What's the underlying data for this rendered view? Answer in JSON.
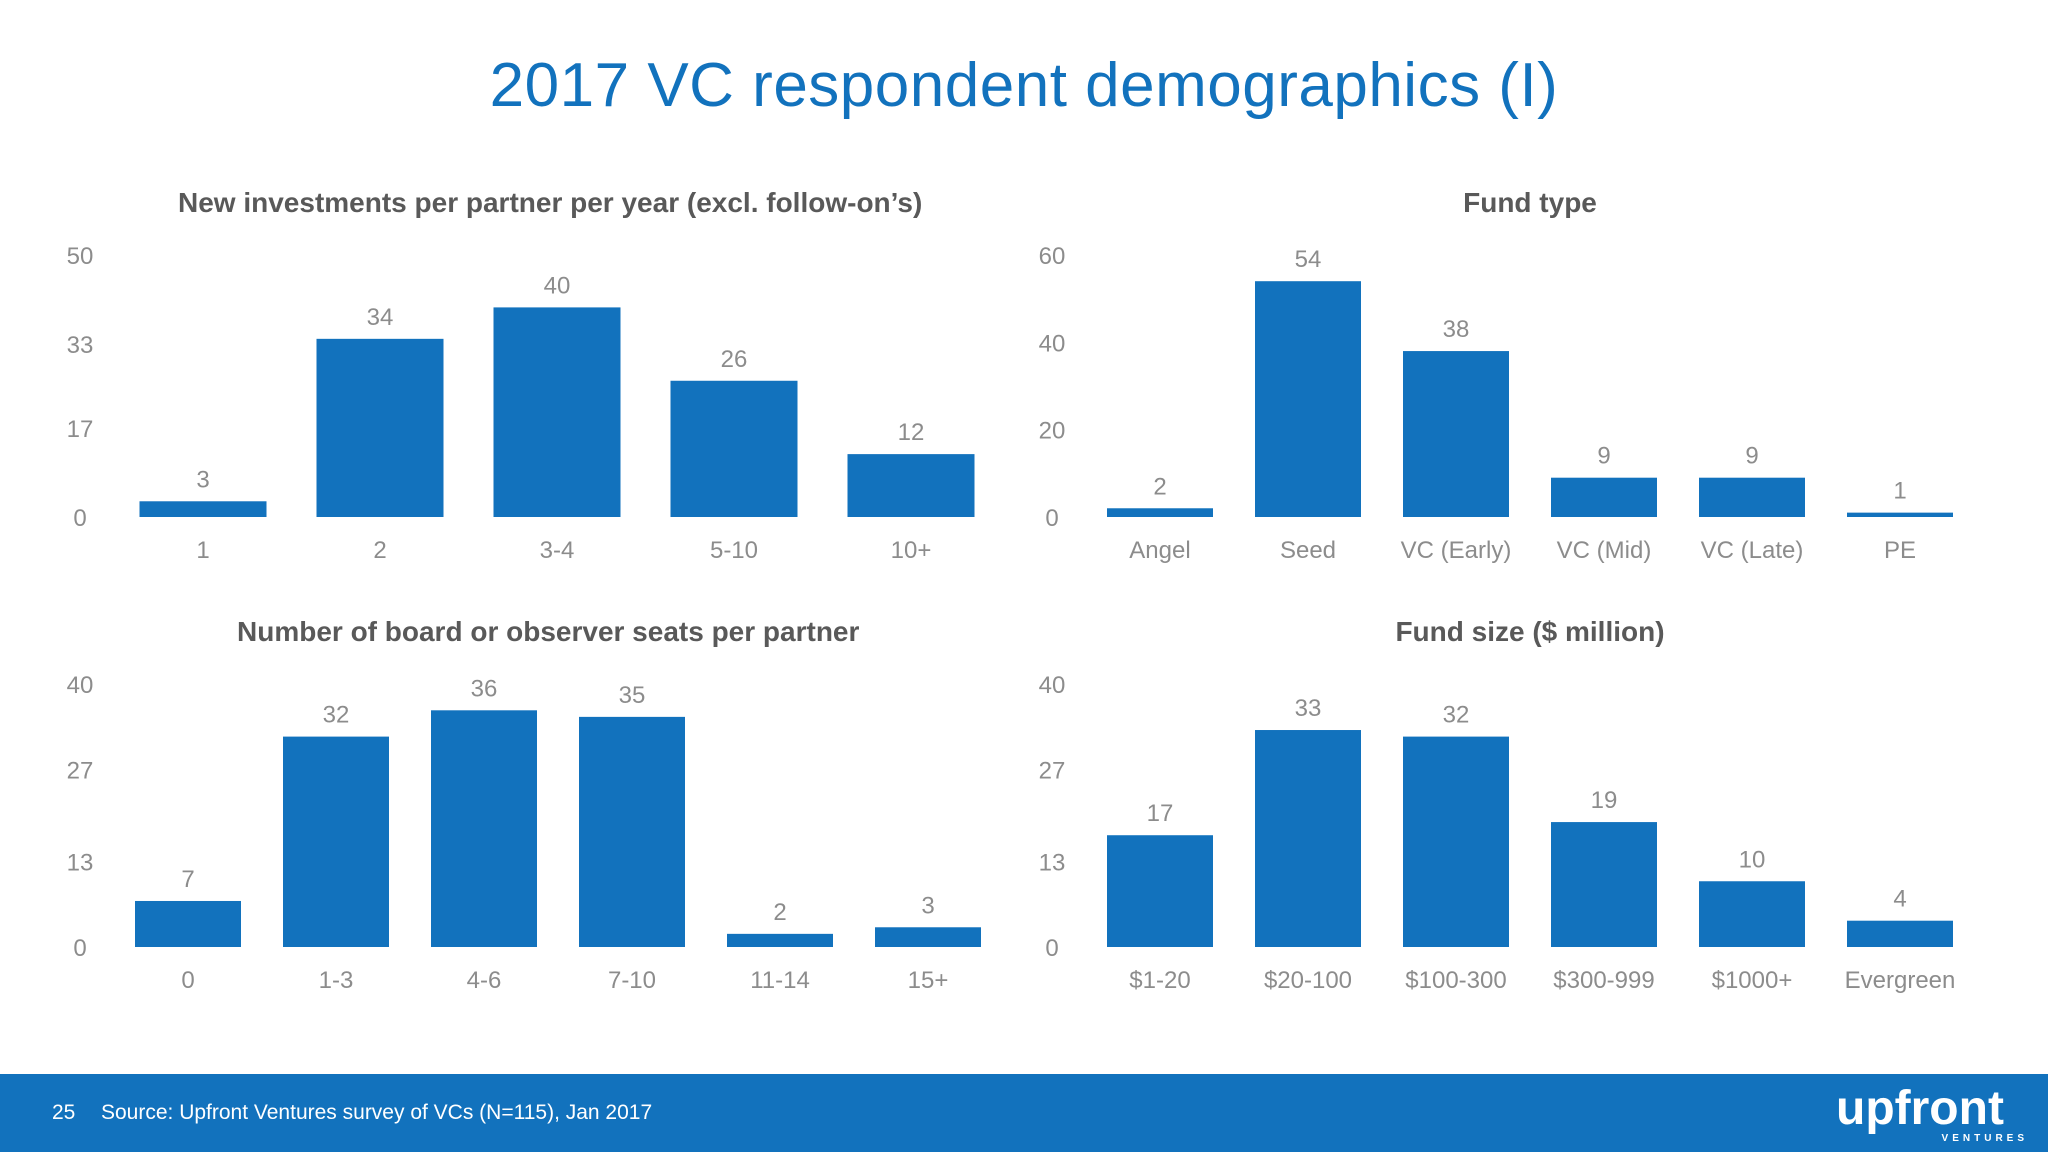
{
  "slide": {
    "title": "2017 VC respondent demographics (I)",
    "page_number": "25",
    "source": "Source: Upfront Ventures survey of VCs (N=115), Jan 2017",
    "logo_text": "upfront",
    "logo_subtext": "VENTURES"
  },
  "colors": {
    "bar": "#1272bd",
    "title": "#1272bd",
    "axis_text": "#8c8c8c",
    "label_text": "#8c8c8c",
    "chart_title": "#595959",
    "footer": "#1272bd"
  },
  "chart_data": [
    {
      "type": "bar",
      "title": "New investments per partner per year (excl. follow-on’s)",
      "categories": [
        "1",
        "2",
        "3-4",
        "5-10",
        "10+"
      ],
      "values": [
        3,
        34,
        40,
        26,
        12
      ],
      "yticks": [
        "0",
        "17",
        "33",
        "50"
      ],
      "ylim": [
        0,
        50
      ],
      "grid": false,
      "xlabel": "",
      "ylabel": ""
    },
    {
      "type": "bar",
      "title": "Fund type",
      "categories": [
        "Angel",
        "Seed",
        "VC (Early)",
        "VC (Mid)",
        "VC (Late)",
        "PE"
      ],
      "values": [
        2,
        54,
        38,
        9,
        9,
        1
      ],
      "yticks": [
        "0",
        "20",
        "40",
        "60"
      ],
      "ylim": [
        0,
        60
      ],
      "grid": false,
      "xlabel": "",
      "ylabel": ""
    },
    {
      "type": "bar",
      "title": "Number of board or observer seats per partner",
      "categories": [
        "0",
        "1-3",
        "4-6",
        "7-10",
        "11-14",
        "15+"
      ],
      "values": [
        7,
        32,
        36,
        35,
        2,
        3
      ],
      "yticks": [
        "0",
        "13",
        "27",
        "40"
      ],
      "ylim": [
        0,
        40
      ],
      "grid": false,
      "xlabel": "",
      "ylabel": ""
    },
    {
      "type": "bar",
      "title": "Fund size ($ million)",
      "categories": [
        "$1-20",
        "$20-100",
        "$100-300",
        "$300-999",
        "$1000+",
        "Evergreen"
      ],
      "values": [
        17,
        33,
        32,
        19,
        10,
        4
      ],
      "yticks": [
        "0",
        "13",
        "27",
        "40"
      ],
      "ylim": [
        0,
        40
      ],
      "grid": false,
      "xlabel": "",
      "ylabel": ""
    }
  ]
}
